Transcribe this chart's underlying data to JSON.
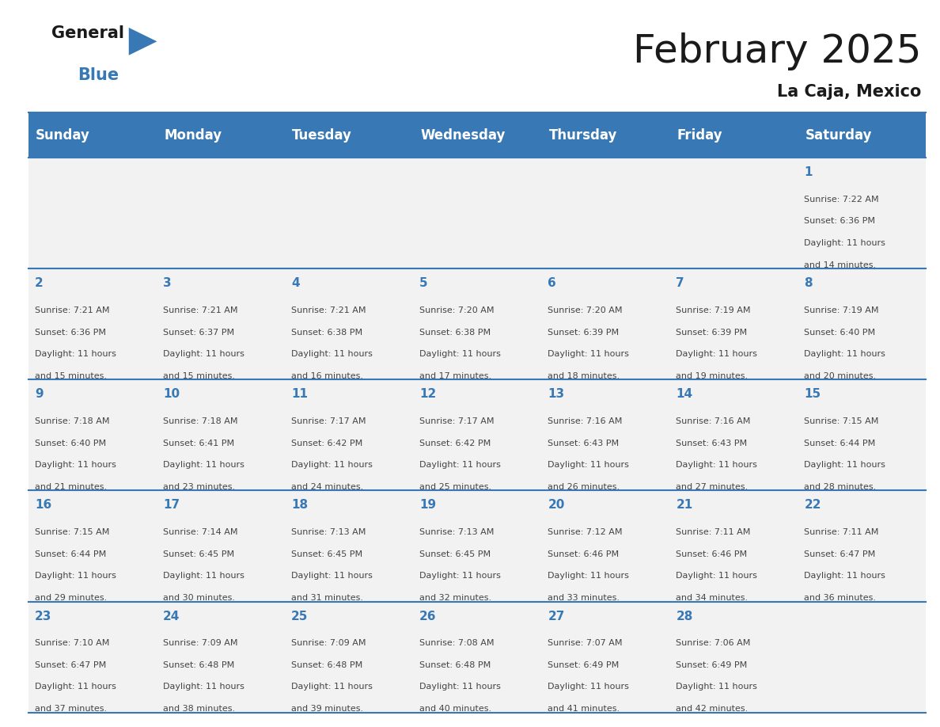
{
  "title": "February 2025",
  "subtitle": "La Caja, Mexico",
  "days_of_week": [
    "Sunday",
    "Monday",
    "Tuesday",
    "Wednesday",
    "Thursday",
    "Friday",
    "Saturday"
  ],
  "header_bg": "#3778b5",
  "header_text_color": "#ffffff",
  "cell_bg": "#f2f2f2",
  "day_number_color": "#3778b5",
  "info_text_color": "#444444",
  "border_color": "#3778b5",
  "background_color": "#ffffff",
  "calendar_data": [
    [
      null,
      null,
      null,
      null,
      null,
      null,
      {
        "day": 1,
        "sunrise": "7:22 AM",
        "sunset": "6:36 PM",
        "daylight": "11 hours and 14 minutes."
      }
    ],
    [
      {
        "day": 2,
        "sunrise": "7:21 AM",
        "sunset": "6:36 PM",
        "daylight": "11 hours and 15 minutes."
      },
      {
        "day": 3,
        "sunrise": "7:21 AM",
        "sunset": "6:37 PM",
        "daylight": "11 hours and 15 minutes."
      },
      {
        "day": 4,
        "sunrise": "7:21 AM",
        "sunset": "6:38 PM",
        "daylight": "11 hours and 16 minutes."
      },
      {
        "day": 5,
        "sunrise": "7:20 AM",
        "sunset": "6:38 PM",
        "daylight": "11 hours and 17 minutes."
      },
      {
        "day": 6,
        "sunrise": "7:20 AM",
        "sunset": "6:39 PM",
        "daylight": "11 hours and 18 minutes."
      },
      {
        "day": 7,
        "sunrise": "7:19 AM",
        "sunset": "6:39 PM",
        "daylight": "11 hours and 19 minutes."
      },
      {
        "day": 8,
        "sunrise": "7:19 AM",
        "sunset": "6:40 PM",
        "daylight": "11 hours and 20 minutes."
      }
    ],
    [
      {
        "day": 9,
        "sunrise": "7:18 AM",
        "sunset": "6:40 PM",
        "daylight": "11 hours and 21 minutes."
      },
      {
        "day": 10,
        "sunrise": "7:18 AM",
        "sunset": "6:41 PM",
        "daylight": "11 hours and 23 minutes."
      },
      {
        "day": 11,
        "sunrise": "7:17 AM",
        "sunset": "6:42 PM",
        "daylight": "11 hours and 24 minutes."
      },
      {
        "day": 12,
        "sunrise": "7:17 AM",
        "sunset": "6:42 PM",
        "daylight": "11 hours and 25 minutes."
      },
      {
        "day": 13,
        "sunrise": "7:16 AM",
        "sunset": "6:43 PM",
        "daylight": "11 hours and 26 minutes."
      },
      {
        "day": 14,
        "sunrise": "7:16 AM",
        "sunset": "6:43 PM",
        "daylight": "11 hours and 27 minutes."
      },
      {
        "day": 15,
        "sunrise": "7:15 AM",
        "sunset": "6:44 PM",
        "daylight": "11 hours and 28 minutes."
      }
    ],
    [
      {
        "day": 16,
        "sunrise": "7:15 AM",
        "sunset": "6:44 PM",
        "daylight": "11 hours and 29 minutes."
      },
      {
        "day": 17,
        "sunrise": "7:14 AM",
        "sunset": "6:45 PM",
        "daylight": "11 hours and 30 minutes."
      },
      {
        "day": 18,
        "sunrise": "7:13 AM",
        "sunset": "6:45 PM",
        "daylight": "11 hours and 31 minutes."
      },
      {
        "day": 19,
        "sunrise": "7:13 AM",
        "sunset": "6:45 PM",
        "daylight": "11 hours and 32 minutes."
      },
      {
        "day": 20,
        "sunrise": "7:12 AM",
        "sunset": "6:46 PM",
        "daylight": "11 hours and 33 minutes."
      },
      {
        "day": 21,
        "sunrise": "7:11 AM",
        "sunset": "6:46 PM",
        "daylight": "11 hours and 34 minutes."
      },
      {
        "day": 22,
        "sunrise": "7:11 AM",
        "sunset": "6:47 PM",
        "daylight": "11 hours and 36 minutes."
      }
    ],
    [
      {
        "day": 23,
        "sunrise": "7:10 AM",
        "sunset": "6:47 PM",
        "daylight": "11 hours and 37 minutes."
      },
      {
        "day": 24,
        "sunrise": "7:09 AM",
        "sunset": "6:48 PM",
        "daylight": "11 hours and 38 minutes."
      },
      {
        "day": 25,
        "sunrise": "7:09 AM",
        "sunset": "6:48 PM",
        "daylight": "11 hours and 39 minutes."
      },
      {
        "day": 26,
        "sunrise": "7:08 AM",
        "sunset": "6:48 PM",
        "daylight": "11 hours and 40 minutes."
      },
      {
        "day": 27,
        "sunrise": "7:07 AM",
        "sunset": "6:49 PM",
        "daylight": "11 hours and 41 minutes."
      },
      {
        "day": 28,
        "sunrise": "7:06 AM",
        "sunset": "6:49 PM",
        "daylight": "11 hours and 42 minutes."
      },
      null
    ]
  ],
  "logo_text_general": "General",
  "logo_text_blue": "Blue",
  "logo_color_general": "#1a1a1a",
  "logo_color_blue": "#3778b5",
  "logo_triangle_color": "#3778b5",
  "title_fontsize": 36,
  "subtitle_fontsize": 15,
  "header_fontsize": 12,
  "day_num_fontsize": 11,
  "info_fontsize": 8
}
